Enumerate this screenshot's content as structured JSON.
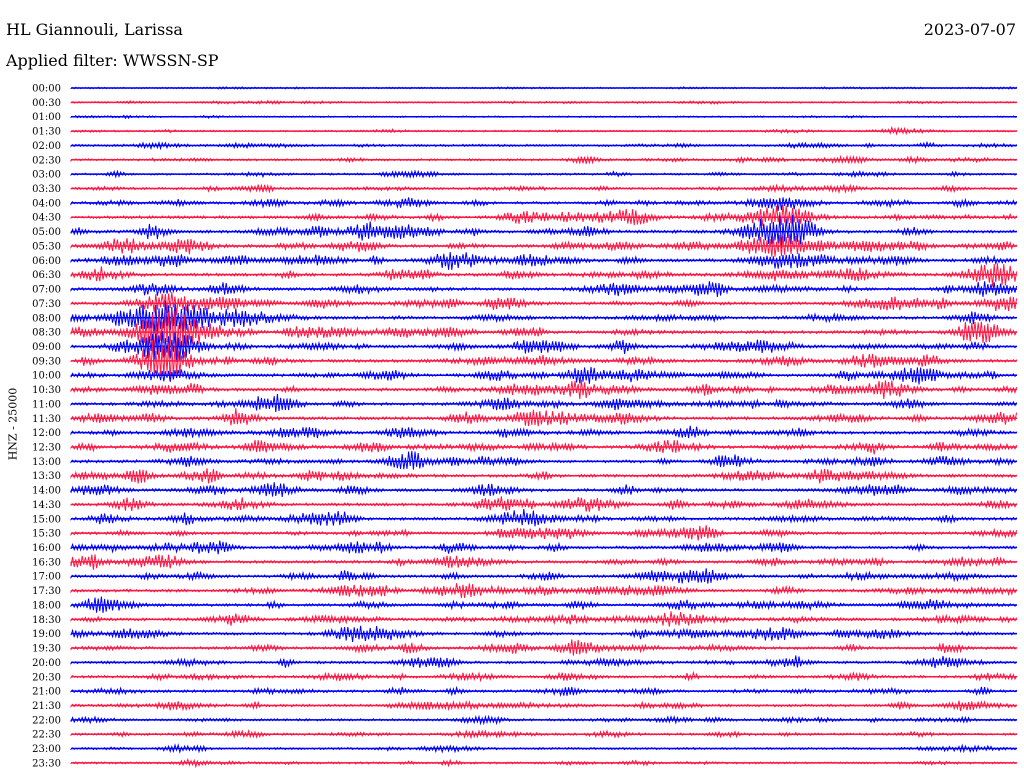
{
  "header": {
    "station": "HL Giannouli, Larissa",
    "date": "2023-07-07",
    "filter_label": "Applied filter: WWSSN-SP"
  },
  "axis": {
    "ylabel": "HNZ - 25000"
  },
  "colors": {
    "even_trace": "#0000ff",
    "odd_trace": "#ff1744",
    "text": "#000000",
    "background": "#ffffff"
  },
  "chart_data": {
    "type": "line",
    "title": "HL Giannouli, Larissa",
    "xlabel": "",
    "ylabel": "HNZ - 25000",
    "grid": false,
    "legend": "none",
    "series_color_pattern": [
      "#0000ff",
      "#ff1744"
    ],
    "categories": [
      "00:00",
      "00:30",
      "01:00",
      "01:30",
      "02:00",
      "02:30",
      "03:00",
      "03:30",
      "04:00",
      "04:30",
      "05:00",
      "05:30",
      "06:00",
      "06:30",
      "07:00",
      "07:30",
      "08:00",
      "08:30",
      "09:00",
      "09:30",
      "10:00",
      "10:30",
      "11:00",
      "11:30",
      "12:00",
      "12:30",
      "13:00",
      "13:30",
      "14:00",
      "14:30",
      "15:00",
      "15:30",
      "16:00",
      "16:30",
      "17:00",
      "17:30",
      "18:00",
      "18:30",
      "19:00",
      "19:30",
      "20:00",
      "20:30",
      "21:00",
      "21:30",
      "22:00",
      "22:30",
      "23:00",
      "23:30"
    ],
    "noise_level": [
      0.1,
      0.15,
      0.12,
      0.18,
      0.35,
      0.35,
      0.3,
      0.4,
      0.5,
      0.6,
      0.7,
      0.7,
      0.7,
      0.7,
      0.7,
      0.7,
      0.7,
      0.7,
      0.7,
      0.7,
      0.7,
      0.7,
      0.7,
      0.7,
      0.7,
      0.7,
      0.7,
      0.7,
      0.65,
      0.65,
      0.65,
      0.65,
      0.65,
      0.65,
      0.65,
      0.65,
      0.6,
      0.6,
      0.6,
      0.55,
      0.55,
      0.5,
      0.5,
      0.5,
      0.4,
      0.4,
      0.3,
      0.3
    ],
    "events": [
      {
        "time": "05:00",
        "x_fraction": 0.75,
        "peak_rows_amplitude": 1.2
      },
      {
        "time": "08:30",
        "x_fraction": 0.1,
        "peak_rows_amplitude": 1.6
      }
    ]
  }
}
